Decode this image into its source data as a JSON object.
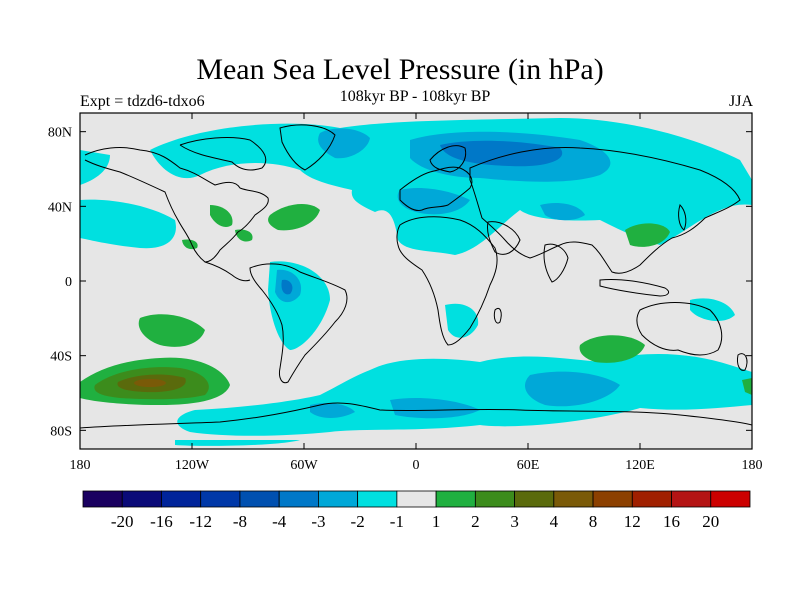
{
  "title": "Mean Sea Level Pressure (in hPa)",
  "subtitle_left": "Expt = tdzd6-tdxo6",
  "subtitle_center": "108kyr BP - 108kyr BP",
  "subtitle_right": "JJA",
  "map": {
    "lon_range": [
      -180,
      180
    ],
    "lat_range": [
      -90,
      90
    ],
    "x_ticks": [
      {
        "value": -180,
        "label": "180"
      },
      {
        "value": -120,
        "label": "120W"
      },
      {
        "value": -60,
        "label": "60W"
      },
      {
        "value": 0,
        "label": "0"
      },
      {
        "value": 60,
        "label": "60E"
      },
      {
        "value": 120,
        "label": "120E"
      },
      {
        "value": 180,
        "label": "180"
      }
    ],
    "y_ticks": [
      {
        "value": 80,
        "label": "80N"
      },
      {
        "value": 40,
        "label": "40N"
      },
      {
        "value": 0,
        "label": "0"
      },
      {
        "value": -40,
        "label": "40S"
      },
      {
        "value": -80,
        "label": "80S"
      }
    ],
    "background_color": "#e6e6e6"
  },
  "colorbar": {
    "colors": [
      "#1a0060",
      "#0a0a78",
      "#00249a",
      "#0038a8",
      "#0050b0",
      "#0078c8",
      "#00a8d8",
      "#00e0e0",
      "#e6e6e6",
      "#20b040",
      "#3c8c1c",
      "#5a6a0c",
      "#7a5a08",
      "#8c4000",
      "#a02000",
      "#b41414",
      "#cc0000"
    ],
    "labels": [
      "-20",
      "-16",
      "-12",
      "-8",
      "-4",
      "-3",
      "-2",
      "-1",
      "1",
      "2",
      "3",
      "4",
      "8",
      "12",
      "16",
      "20"
    ]
  }
}
